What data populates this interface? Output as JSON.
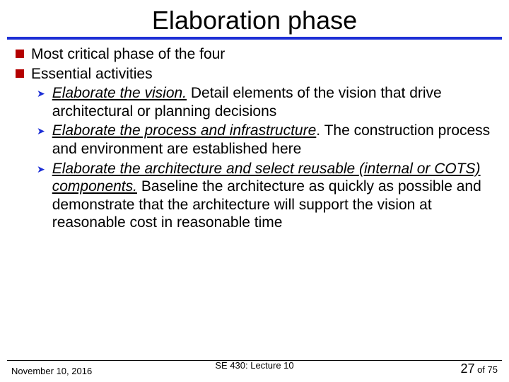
{
  "title": "Elaboration phase",
  "bullets": {
    "b1": "Most critical phase of the four",
    "b2": "Essential activities",
    "sub1_u": "Elaborate the vision.",
    "sub1_rest": " Detail elements of the vision that drive architectural or planning decisions",
    "sub2_u": "Elaborate the process and infrastructure",
    "sub2_rest": ". The construction process and environment are established here",
    "sub3_u": "Elaborate the architecture and select reusable (internal or COTS) components.",
    "sub3_rest": " Baseline the architecture as quickly as possible and demonstrate that the architecture will support the vision at reasonable cost in reasonable time"
  },
  "footer": {
    "date": "November 10, 2016",
    "center": "SE 430: Lecture 10",
    "page_cur": "27",
    "page_of": " of 75"
  },
  "colors": {
    "title_rule": "#1d2fd6",
    "square_bullet": "#b40000",
    "arrow_bullet": "#1d2fd6"
  }
}
